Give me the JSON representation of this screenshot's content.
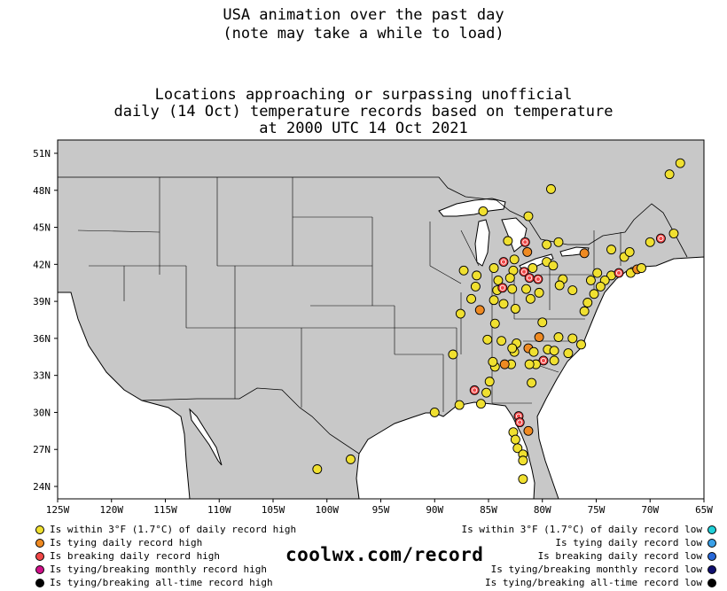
{
  "titles": {
    "line1": "USA animation over the past day",
    "line2": "(note may take a while to load)",
    "heading1": "Locations approaching or surpassing unofficial",
    "heading2": "daily (14 Oct) temperature records based on temperature",
    "heading3": "at 2000 UTC 14 Oct 2021"
  },
  "brand": "coolwx.com/record",
  "axes": {
    "lon_labels": [
      "125W",
      "120W",
      "115W",
      "110W",
      "105W",
      "100W",
      "95W",
      "90W",
      "85W",
      "80W",
      "75W",
      "70W",
      "65W"
    ],
    "lat_labels": [
      "51N",
      "48N",
      "45N",
      "42N",
      "39N",
      "36N",
      "33N",
      "30N",
      "27N",
      "24N"
    ]
  },
  "legend_left": [
    {
      "label": "Is within 3°F (1.7°C) of daily record high",
      "color": "#f0e030",
      "icon": "within-high-marker"
    },
    {
      "label": "Is tying daily record high",
      "color": "#ef8a22",
      "icon": "tying-high-marker"
    },
    {
      "label": "Is breaking daily record high",
      "color": "#f04848",
      "icon": "breaking-high-marker"
    },
    {
      "label": "Is tying/breaking monthly record high",
      "color": "#d0108a",
      "icon": "monthly-high-marker"
    },
    {
      "label": "Is tying/breaking all-time record high",
      "color": "#000000",
      "icon": "alltime-high-marker"
    }
  ],
  "legend_right": [
    {
      "label": "Is within 3°F (1.7°C) of daily record low",
      "color": "#20d0d8",
      "icon": "within-low-marker"
    },
    {
      "label": "Is tying daily record low",
      "color": "#3aa0e8",
      "icon": "tying-low-marker"
    },
    {
      "label": "Is breaking daily record low",
      "color": "#2868d8",
      "icon": "breaking-low-marker"
    },
    {
      "label": "Is tying/breaking monthly record low",
      "color": "#101070",
      "icon": "monthly-low-marker"
    },
    {
      "label": "Is tying/breaking all-time record low",
      "color": "#000000",
      "icon": "alltime-low-marker"
    }
  ],
  "colors": {
    "within_high": "#f0e030",
    "tying_high": "#ef8a22",
    "breaking_high": "#f04848",
    "land": "#c8c8c8"
  },
  "stations": [
    {
      "lon": -67.2,
      "lat": 50.2,
      "cat": "within_high"
    },
    {
      "lon": -68.2,
      "lat": 49.3,
      "cat": "within_high"
    },
    {
      "lon": -79.2,
      "lat": 48.1,
      "cat": "within_high"
    },
    {
      "lon": -85.5,
      "lat": 46.3,
      "cat": "within_high"
    },
    {
      "lon": -81.3,
      "lat": 45.9,
      "cat": "within_high"
    },
    {
      "lon": -83.2,
      "lat": 43.9,
      "cat": "within_high"
    },
    {
      "lon": -81.6,
      "lat": 43.8,
      "cat": "breaking_high"
    },
    {
      "lon": -81.4,
      "lat": 43.0,
      "cat": "tying_high"
    },
    {
      "lon": -79.6,
      "lat": 43.6,
      "cat": "within_high"
    },
    {
      "lon": -78.5,
      "lat": 43.8,
      "cat": "within_high"
    },
    {
      "lon": -76.1,
      "lat": 42.9,
      "cat": "tying_high"
    },
    {
      "lon": -73.6,
      "lat": 43.2,
      "cat": "within_high"
    },
    {
      "lon": -72.4,
      "lat": 42.6,
      "cat": "within_high"
    },
    {
      "lon": -71.9,
      "lat": 43.0,
      "cat": "within_high"
    },
    {
      "lon": -70.0,
      "lat": 43.8,
      "cat": "within_high"
    },
    {
      "lon": -69.0,
      "lat": 44.1,
      "cat": "breaking_high"
    },
    {
      "lon": -67.8,
      "lat": 44.5,
      "cat": "within_high"
    },
    {
      "lon": -83.6,
      "lat": 42.2,
      "cat": "breaking_high"
    },
    {
      "lon": -82.6,
      "lat": 42.4,
      "cat": "within_high"
    },
    {
      "lon": -79.6,
      "lat": 42.2,
      "cat": "within_high"
    },
    {
      "lon": -79.0,
      "lat": 41.9,
      "cat": "within_high"
    },
    {
      "lon": -84.5,
      "lat": 41.7,
      "cat": "within_high"
    },
    {
      "lon": -82.7,
      "lat": 41.5,
      "cat": "within_high"
    },
    {
      "lon": -81.7,
      "lat": 41.4,
      "cat": "breaking_high"
    },
    {
      "lon": -81.2,
      "lat": 40.9,
      "cat": "breaking_high"
    },
    {
      "lon": -80.4,
      "lat": 40.8,
      "cat": "breaking_high"
    },
    {
      "lon": -80.9,
      "lat": 41.7,
      "cat": "within_high"
    },
    {
      "lon": -83.0,
      "lat": 40.9,
      "cat": "within_high"
    },
    {
      "lon": -84.1,
      "lat": 40.7,
      "cat": "within_high"
    },
    {
      "lon": -86.1,
      "lat": 41.1,
      "cat": "within_high"
    },
    {
      "lon": -87.3,
      "lat": 41.5,
      "cat": "within_high"
    },
    {
      "lon": -86.2,
      "lat": 40.2,
      "cat": "within_high"
    },
    {
      "lon": -84.2,
      "lat": 39.9,
      "cat": "within_high"
    },
    {
      "lon": -83.7,
      "lat": 40.1,
      "cat": "breaking_high"
    },
    {
      "lon": -82.8,
      "lat": 40.0,
      "cat": "within_high"
    },
    {
      "lon": -81.5,
      "lat": 40.0,
      "cat": "within_high"
    },
    {
      "lon": -80.3,
      "lat": 39.7,
      "cat": "within_high"
    },
    {
      "lon": -78.1,
      "lat": 40.8,
      "cat": "within_high"
    },
    {
      "lon": -78.4,
      "lat": 40.3,
      "cat": "within_high"
    },
    {
      "lon": -77.2,
      "lat": 39.9,
      "cat": "within_high"
    },
    {
      "lon": -75.5,
      "lat": 40.7,
      "cat": "within_high"
    },
    {
      "lon": -74.9,
      "lat": 41.3,
      "cat": "within_high"
    },
    {
      "lon": -73.6,
      "lat": 41.1,
      "cat": "within_high"
    },
    {
      "lon": -72.9,
      "lat": 41.3,
      "cat": "breaking_high"
    },
    {
      "lon": -71.8,
      "lat": 41.3,
      "cat": "within_high"
    },
    {
      "lon": -71.2,
      "lat": 41.6,
      "cat": "tying_high"
    },
    {
      "lon": -70.8,
      "lat": 41.7,
      "cat": "within_high"
    },
    {
      "lon": -74.2,
      "lat": 40.7,
      "cat": "within_high"
    },
    {
      "lon": -74.6,
      "lat": 40.2,
      "cat": "within_high"
    },
    {
      "lon": -75.2,
      "lat": 39.6,
      "cat": "within_high"
    },
    {
      "lon": -75.8,
      "lat": 38.9,
      "cat": "within_high"
    },
    {
      "lon": -76.1,
      "lat": 38.2,
      "cat": "within_high"
    },
    {
      "lon": -87.6,
      "lat": 38.0,
      "cat": "within_high"
    },
    {
      "lon": -86.6,
      "lat": 39.2,
      "cat": "within_high"
    },
    {
      "lon": -85.8,
      "lat": 38.3,
      "cat": "tying_high"
    },
    {
      "lon": -84.5,
      "lat": 39.1,
      "cat": "within_high"
    },
    {
      "lon": -83.6,
      "lat": 38.8,
      "cat": "within_high"
    },
    {
      "lon": -82.5,
      "lat": 38.4,
      "cat": "within_high"
    },
    {
      "lon": -81.1,
      "lat": 39.2,
      "cat": "within_high"
    },
    {
      "lon": -80.0,
      "lat": 37.3,
      "cat": "within_high"
    },
    {
      "lon": -78.5,
      "lat": 36.1,
      "cat": "within_high"
    },
    {
      "lon": -77.2,
      "lat": 36.0,
      "cat": "within_high"
    },
    {
      "lon": -76.4,
      "lat": 35.5,
      "cat": "within_high"
    },
    {
      "lon": -84.4,
      "lat": 37.2,
      "cat": "within_high"
    },
    {
      "lon": -85.1,
      "lat": 35.9,
      "cat": "within_high"
    },
    {
      "lon": -83.8,
      "lat": 35.8,
      "cat": "within_high"
    },
    {
      "lon": -82.4,
      "lat": 35.6,
      "cat": "within_high"
    },
    {
      "lon": -80.3,
      "lat": 36.1,
      "cat": "tying_high"
    },
    {
      "lon": -81.3,
      "lat": 35.2,
      "cat": "tying_high"
    },
    {
      "lon": -80.8,
      "lat": 34.9,
      "cat": "within_high"
    },
    {
      "lon": -79.5,
      "lat": 35.1,
      "cat": "within_high"
    },
    {
      "lon": -78.9,
      "lat": 35.0,
      "cat": "within_high"
    },
    {
      "lon": -77.6,
      "lat": 34.8,
      "cat": "within_high"
    },
    {
      "lon": -78.9,
      "lat": 34.2,
      "cat": "within_high"
    },
    {
      "lon": -79.9,
      "lat": 34.2,
      "cat": "breaking_high"
    },
    {
      "lon": -80.6,
      "lat": 33.9,
      "cat": "within_high"
    },
    {
      "lon": -81.2,
      "lat": 33.9,
      "cat": "within_high"
    },
    {
      "lon": -81.0,
      "lat": 32.4,
      "cat": "within_high"
    },
    {
      "lon": -82.6,
      "lat": 34.9,
      "cat": "within_high"
    },
    {
      "lon": -82.9,
      "lat": 33.9,
      "cat": "within_high"
    },
    {
      "lon": -83.5,
      "lat": 33.9,
      "cat": "tying_high"
    },
    {
      "lon": -84.4,
      "lat": 33.7,
      "cat": "within_high"
    },
    {
      "lon": -84.6,
      "lat": 34.1,
      "cat": "within_high"
    },
    {
      "lon": -82.8,
      "lat": 35.2,
      "cat": "within_high"
    },
    {
      "lon": -88.3,
      "lat": 34.7,
      "cat": "within_high"
    },
    {
      "lon": -84.9,
      "lat": 32.5,
      "cat": "within_high"
    },
    {
      "lon": -85.2,
      "lat": 31.6,
      "cat": "within_high"
    },
    {
      "lon": -86.3,
      "lat": 31.8,
      "cat": "breaking_high"
    },
    {
      "lon": -85.7,
      "lat": 30.7,
      "cat": "within_high"
    },
    {
      "lon": -87.7,
      "lat": 30.6,
      "cat": "within_high"
    },
    {
      "lon": -90.0,
      "lat": 30.0,
      "cat": "within_high"
    },
    {
      "lon": -82.2,
      "lat": 29.7,
      "cat": "breaking_high"
    },
    {
      "lon": -82.1,
      "lat": 29.2,
      "cat": "breaking_high"
    },
    {
      "lon": -82.7,
      "lat": 28.4,
      "cat": "within_high"
    },
    {
      "lon": -81.3,
      "lat": 28.5,
      "cat": "tying_high"
    },
    {
      "lon": -82.5,
      "lat": 27.8,
      "cat": "within_high"
    },
    {
      "lon": -82.3,
      "lat": 27.1,
      "cat": "within_high"
    },
    {
      "lon": -81.8,
      "lat": 26.6,
      "cat": "within_high"
    },
    {
      "lon": -81.8,
      "lat": 26.1,
      "cat": "within_high"
    },
    {
      "lon": -81.8,
      "lat": 24.6,
      "cat": "within_high"
    },
    {
      "lon": -97.8,
      "lat": 26.2,
      "cat": "within_high"
    },
    {
      "lon": -100.9,
      "lat": 25.4,
      "cat": "within_high"
    }
  ]
}
